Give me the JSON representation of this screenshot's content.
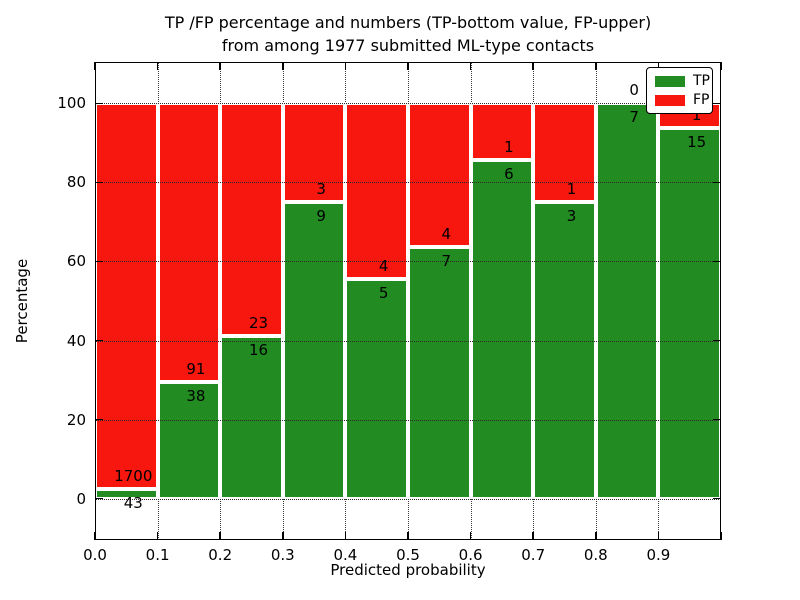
{
  "title": {
    "line1": "TP /FP percentage and numbers (TP-bottom value, FP-upper)",
    "line2": "from among 1977 submitted ML-type contacts"
  },
  "axes": {
    "xlabel": "Predicted probability",
    "ylabel": "Percentage"
  },
  "legend": {
    "entries": [
      {
        "label": "TP",
        "color": "#228b22"
      },
      {
        "label": "FP",
        "color": "#f8170f"
      }
    ],
    "position": "upper right"
  },
  "colors": {
    "tp_green": "#228b22",
    "fp_red": "#f8170f",
    "grid": "#2a2a2a",
    "background": "#ffffff",
    "border": "#000000"
  },
  "chart_data": {
    "type": "bar",
    "stacked": true,
    "normalized": "each bin stack scaled to 100%",
    "title": "TP /FP percentage and numbers (TP-bottom value, FP-upper)\nfrom among 1977 submitted ML-type contacts",
    "xlabel": "Predicted probability",
    "ylabel": "Percentage",
    "x_tick_labels": [
      "0.0",
      "0.1",
      "0.2",
      "0.3",
      "0.4",
      "0.5",
      "0.6",
      "0.7",
      "0.8",
      "0.9"
    ],
    "y_ticks": [
      0,
      20,
      40,
      60,
      80,
      100
    ],
    "xlim": [
      0.0,
      1.0
    ],
    "ylim": [
      -10.5,
      110.5
    ],
    "bin_width": 0.1,
    "total_contacts": 1977,
    "grid": true,
    "legend_position": "upper right",
    "series": [
      {
        "name": "TP",
        "color": "#228b22",
        "counts": [
          43,
          38,
          16,
          9,
          5,
          7,
          6,
          3,
          7,
          15
        ]
      },
      {
        "name": "FP",
        "color": "#f8170f",
        "counts": [
          1700,
          91,
          23,
          3,
          4,
          4,
          1,
          1,
          0,
          1
        ]
      }
    ],
    "bins": [
      {
        "range": "0.0-0.1",
        "tp": 43,
        "fp": 1700
      },
      {
        "range": "0.1-0.2",
        "tp": 38,
        "fp": 91
      },
      {
        "range": "0.2-0.3",
        "tp": 16,
        "fp": 23
      },
      {
        "range": "0.3-0.4",
        "tp": 9,
        "fp": 3
      },
      {
        "range": "0.4-0.5",
        "tp": 5,
        "fp": 4
      },
      {
        "range": "0.5-0.6",
        "tp": 7,
        "fp": 4
      },
      {
        "range": "0.6-0.7",
        "tp": 6,
        "fp": 1
      },
      {
        "range": "0.7-0.8",
        "tp": 3,
        "fp": 1
      },
      {
        "range": "0.8-0.9",
        "tp": 7,
        "fp": 0
      },
      {
        "range": "0.9-1.0",
        "tp": 15,
        "fp": 1
      }
    ]
  }
}
